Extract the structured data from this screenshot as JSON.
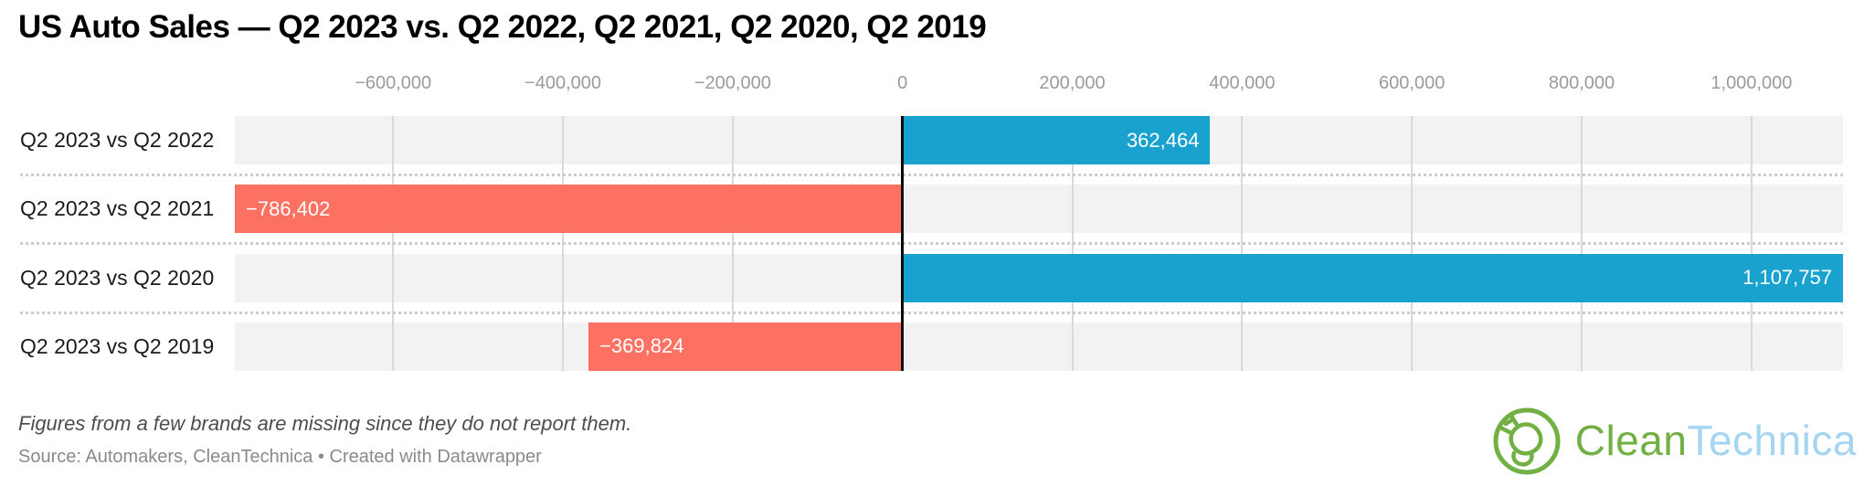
{
  "chart_data": {
    "type": "bar",
    "orientation": "horizontal",
    "title": "US Auto Sales — Q2 2023 vs. Q2 2022, Q2 2021, Q2 2020, Q2 2019",
    "categories": [
      "Q2 2023 vs Q2 2022",
      "Q2 2023 vs Q2 2021",
      "Q2 2023 vs Q2 2020",
      "Q2 2023 vs Q2 2019"
    ],
    "values": [
      362464,
      -786402,
      1107757,
      -369824
    ],
    "value_labels": [
      "362,464",
      "−786,402",
      "1,107,757",
      "−369,824"
    ],
    "axis_ticks": [
      -600000,
      -400000,
      -200000,
      0,
      200000,
      400000,
      600000,
      800000,
      1000000
    ],
    "axis_tick_labels": [
      "−600,000",
      "−400,000",
      "−200,000",
      "0",
      "200,000",
      "400,000",
      "600,000",
      "800,000",
      "1,000,000"
    ],
    "xlim": [
      -786402,
      1107757
    ],
    "xlabel": "",
    "ylabel": "",
    "grid": true,
    "legend": "none",
    "colors": {
      "positive": "#1aa2ce",
      "negative": "#fc7161",
      "row_background": "#f2f2f2",
      "gridline": "#d9d9d9",
      "zero_line": "#0b0b0b"
    }
  },
  "footer": {
    "note": "Figures from a few brands are missing since they do not report them.",
    "source": "Source: Automakers, CleanTechnica • Created with Datawrapper"
  },
  "logo": {
    "text_primary": "Clean",
    "text_secondary": "Technica",
    "primary_color": "#72b043",
    "secondary_color": "#a5d5f0"
  }
}
